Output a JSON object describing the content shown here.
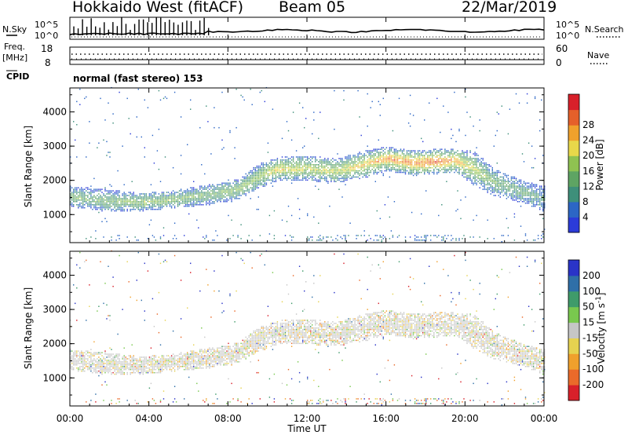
{
  "header": {
    "station": "Hokkaido West (fitACF)",
    "beam": "Beam 05",
    "date": "22/Mar/2019"
  },
  "labels": {
    "nsky": "N.Sky",
    "nsearch": "N.Search",
    "freq": "Freq.",
    "freq_unit": "[MHz]",
    "nave": "Nave",
    "cpid": "CPID",
    "mode": "normal (fast stereo) 153",
    "xlabel": "Time UT"
  },
  "noise_axis": {
    "top_left": "10^5",
    "bottom_left": "10^0",
    "top_right": "10^5",
    "bottom_right": "10^0"
  },
  "freq_axis": {
    "ticks_left": [
      "18",
      "8"
    ],
    "ticks_right": [
      "60",
      "0"
    ]
  },
  "chart_data": [
    {
      "type": "heatmap",
      "title": "",
      "xlabel": "Time UT",
      "ylabel": "Slant Range [km]",
      "x_ticks": [
        "00:00",
        "04:00",
        "08:00",
        "12:00",
        "16:00",
        "20:00",
        "00:00"
      ],
      "x_range_hours": [
        0,
        24
      ],
      "y_ticks": [
        1000,
        2000,
        3000,
        4000
      ],
      "ylim": [
        180,
        4700
      ],
      "colorbar": {
        "label": "Power [dB]",
        "ticks": [
          4,
          8,
          12,
          16,
          20,
          24,
          28
        ],
        "range": [
          0,
          31
        ],
        "colors": [
          "#2b3bd8",
          "#2c66c5",
          "#3e8f7a",
          "#5ea463",
          "#8fc251",
          "#e8d84a",
          "#f0a12c",
          "#e5602a",
          "#d8202a"
        ]
      },
      "band": [
        {
          "t": 0,
          "lo": 1180,
          "hi": 1800,
          "power": 10
        },
        {
          "t": 2,
          "lo": 1050,
          "hi": 1700,
          "power": 10
        },
        {
          "t": 3.5,
          "lo": 1050,
          "hi": 1600,
          "power": 12
        },
        {
          "t": 5,
          "lo": 1150,
          "hi": 1650,
          "power": 12
        },
        {
          "t": 7,
          "lo": 1250,
          "hi": 1850,
          "power": 10
        },
        {
          "t": 8.5,
          "lo": 1400,
          "hi": 2000,
          "power": 12
        },
        {
          "t": 9.5,
          "lo": 1700,
          "hi": 2450,
          "power": 12
        },
        {
          "t": 10.5,
          "lo": 1950,
          "hi": 2650,
          "power": 17
        },
        {
          "t": 12,
          "lo": 1950,
          "hi": 2700,
          "power": 15
        },
        {
          "t": 13.5,
          "lo": 1900,
          "hi": 2600,
          "power": 15
        },
        {
          "t": 15,
          "lo": 2050,
          "hi": 2850,
          "power": 18
        },
        {
          "t": 16,
          "lo": 2250,
          "hi": 2950,
          "power": 22
        },
        {
          "t": 17.5,
          "lo": 2100,
          "hi": 2850,
          "power": 22
        },
        {
          "t": 18.5,
          "lo": 2150,
          "hi": 2900,
          "power": 24
        },
        {
          "t": 19.5,
          "lo": 2200,
          "hi": 2900,
          "power": 20
        },
        {
          "t": 20.5,
          "lo": 1800,
          "hi": 2800,
          "power": 14
        },
        {
          "t": 21.5,
          "lo": 1500,
          "hi": 2300,
          "power": 10
        },
        {
          "t": 23,
          "lo": 1300,
          "hi": 1950,
          "power": 8
        },
        {
          "t": 24,
          "lo": 1050,
          "hi": 1800,
          "power": 6
        }
      ],
      "ground_scatter_range": [
        200,
        400
      ]
    },
    {
      "type": "heatmap",
      "title": "",
      "xlabel": "Time UT",
      "ylabel": "Slant Range [km]",
      "x_ticks": [
        "00:00",
        "04:00",
        "08:00",
        "12:00",
        "16:00",
        "20:00",
        "00:00"
      ],
      "x_range_hours": [
        0,
        24
      ],
      "y_ticks": [
        1000,
        2000,
        3000,
        4000
      ],
      "ylim": [
        180,
        4700
      ],
      "colorbar": {
        "label": "Velocity [m s^-1]",
        "ticks": [
          200,
          100,
          50,
          15,
          -15,
          -50,
          -100,
          -200
        ],
        "colors": [
          "#2a34c8",
          "#2f6fa8",
          "#3f9b6a",
          "#79c84e",
          "#c6c6c6",
          "#e6d250",
          "#f0a02c",
          "#ea6a2a",
          "#d8202a"
        ]
      },
      "dominant_velocity_class": "-15..15 (ground/slow)",
      "band_reference": "same range band as Power panel"
    }
  ]
}
